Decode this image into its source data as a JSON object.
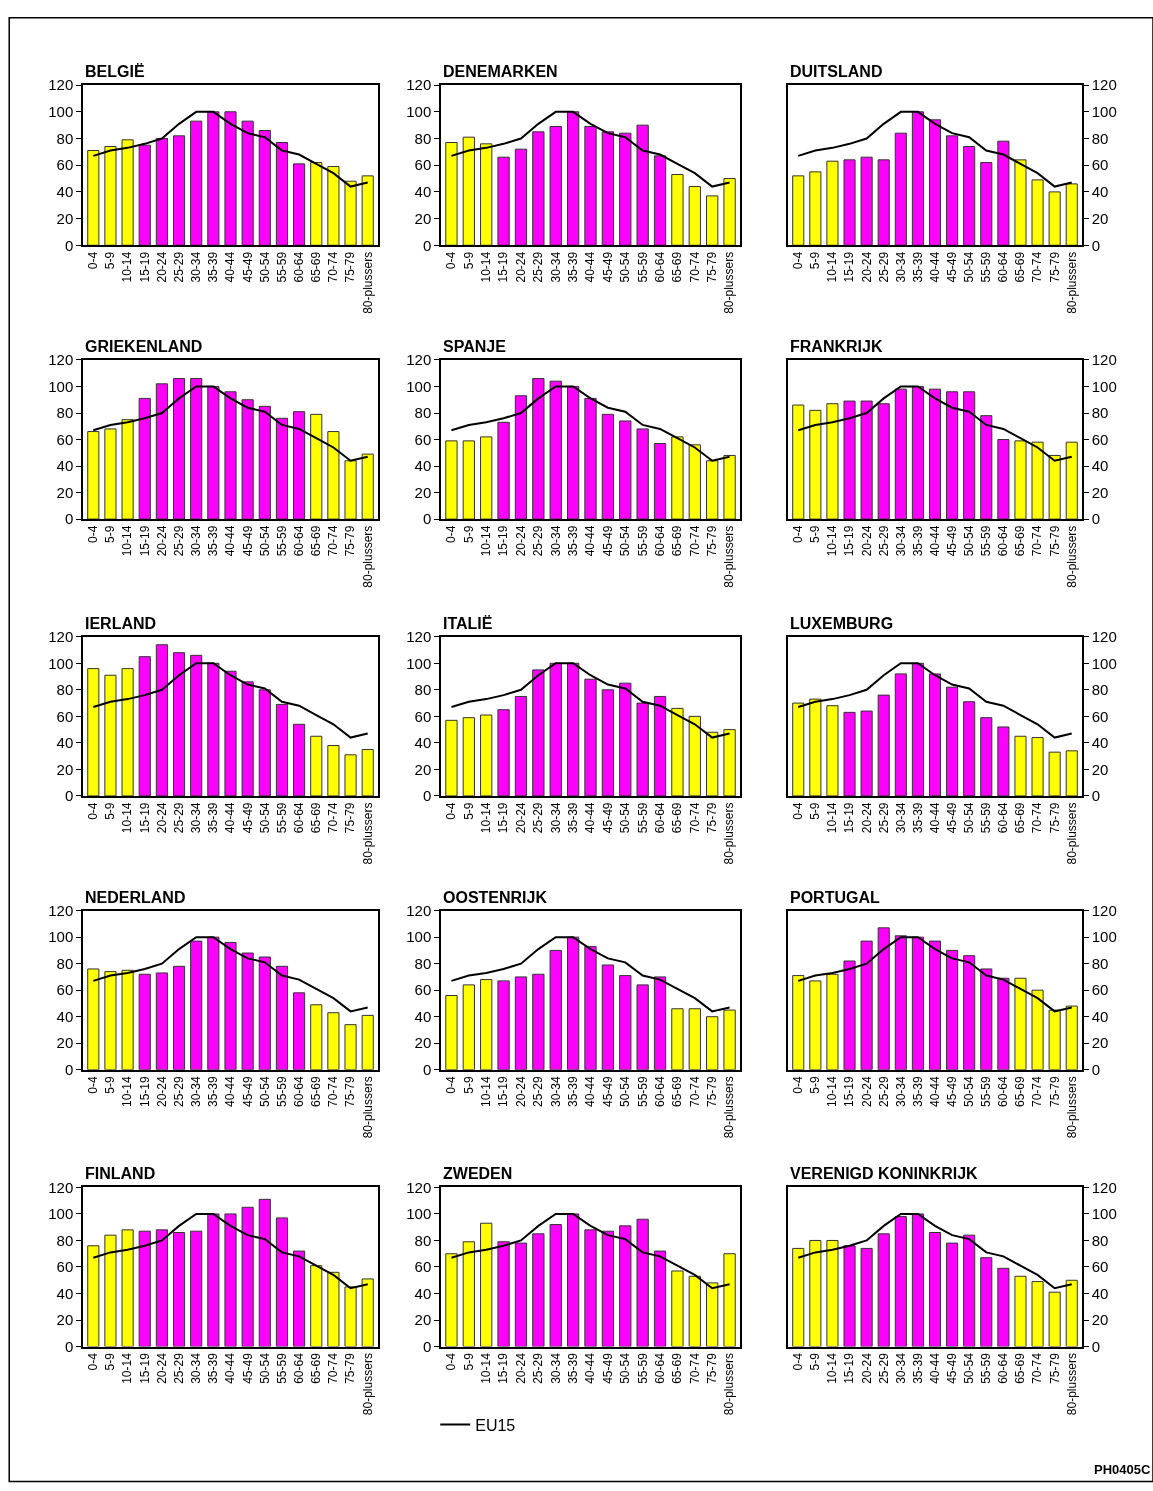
{
  "chart_data": [
    {
      "type": "bar",
      "title": "BELGIË",
      "categories": [
        "0-4",
        "5-9",
        "10-14",
        "15-19",
        "20-24",
        "25-29",
        "30-34",
        "35-39",
        "40-44",
        "45-49",
        "50-54",
        "55-59",
        "60-64",
        "65-69",
        "70-74",
        "75-79",
        "80-plussers"
      ],
      "ylim": [
        0,
        120
      ],
      "yticks": [
        0,
        20,
        40,
        60,
        80,
        100,
        120
      ],
      "series": [
        {
          "colors": [
            "#ffff00",
            "#ffff00",
            "#ffff00",
            "#ff00ff",
            "#ff00ff",
            "#ff00ff",
            "#ff00ff",
            "#ff00ff",
            "#ff00ff",
            "#ff00ff",
            "#ff00ff",
            "#ff00ff",
            "#ff00ff",
            "#ffff00",
            "#ffff00",
            "#ffff00",
            "#ffff00"
          ],
          "values": [
            71,
            74,
            79,
            75,
            80,
            82,
            93,
            100,
            100,
            93,
            86,
            77,
            61,
            62,
            59,
            48,
            52
          ]
        },
        {
          "type": "line",
          "color": "#000000",
          "values": [
            67,
            71,
            73,
            76,
            80,
            91,
            100,
            100,
            91,
            84,
            81,
            71,
            68,
            61,
            54,
            44,
            47
          ]
        }
      ]
    },
    {
      "type": "bar",
      "title": "DENEMARKEN",
      "categories": [
        "0-4",
        "5-9",
        "10-14",
        "15-19",
        "20-24",
        "25-29",
        "30-34",
        "35-39",
        "40-44",
        "45-49",
        "50-54",
        "55-59",
        "60-64",
        "65-69",
        "70-74",
        "75-79",
        "80-plussers"
      ],
      "ylim": [
        0,
        120
      ],
      "yticks": [
        0,
        20,
        40,
        60,
        80,
        100,
        120
      ],
      "series": [
        {
          "colors": [
            "#ffff00",
            "#ffff00",
            "#ffff00",
            "#ff00ff",
            "#ff00ff",
            "#ff00ff",
            "#ff00ff",
            "#ff00ff",
            "#ff00ff",
            "#ff00ff",
            "#ff00ff",
            "#ff00ff",
            "#ff00ff",
            "#ffff00",
            "#ffff00",
            "#ffff00",
            "#ffff00"
          ],
          "values": [
            77,
            81,
            76,
            66,
            72,
            85,
            89,
            100,
            89,
            85,
            84,
            90,
            67,
            53,
            44,
            37,
            50
          ]
        },
        {
          "type": "line",
          "color": "#000000",
          "values": [
            67,
            71,
            73,
            76,
            80,
            91,
            100,
            100,
            91,
            84,
            81,
            71,
            68,
            61,
            54,
            44,
            47
          ]
        }
      ]
    },
    {
      "type": "bar",
      "title": "DUITSLAND",
      "categories": [
        "0-4",
        "5-9",
        "10-14",
        "15-19",
        "20-24",
        "25-29",
        "30-34",
        "35-39",
        "40-44",
        "45-49",
        "50-54",
        "55-59",
        "60-64",
        "65-69",
        "70-74",
        "75-79",
        "80-plussers"
      ],
      "ylim": [
        0,
        120
      ],
      "yticks": [
        0,
        20,
        40,
        60,
        80,
        100,
        120
      ],
      "series": [
        {
          "colors": [
            "#ffff00",
            "#ffff00",
            "#ffff00",
            "#ff00ff",
            "#ff00ff",
            "#ff00ff",
            "#ff00ff",
            "#ff00ff",
            "#ff00ff",
            "#ff00ff",
            "#ff00ff",
            "#ff00ff",
            "#ff00ff",
            "#ffff00",
            "#ffff00",
            "#ffff00",
            "#ffff00"
          ],
          "values": [
            52,
            55,
            63,
            64,
            66,
            64,
            84,
            100,
            94,
            82,
            74,
            62,
            78,
            64,
            49,
            40,
            46
          ]
        },
        {
          "type": "line",
          "color": "#000000",
          "values": [
            67,
            71,
            73,
            76,
            80,
            91,
            100,
            100,
            91,
            84,
            81,
            71,
            68,
            61,
            54,
            44,
            47
          ]
        }
      ]
    },
    {
      "type": "bar",
      "title": "GRIEKENLAND",
      "categories": [
        "0-4",
        "5-9",
        "10-14",
        "15-19",
        "20-24",
        "25-29",
        "30-34",
        "35-39",
        "40-44",
        "45-49",
        "50-54",
        "55-59",
        "60-64",
        "65-69",
        "70-74",
        "75-79",
        "80-plussers"
      ],
      "ylim": [
        0,
        120
      ],
      "yticks": [
        0,
        20,
        40,
        60,
        80,
        100,
        120
      ],
      "series": [
        {
          "colors": [
            "#ffff00",
            "#ffff00",
            "#ffff00",
            "#ff00ff",
            "#ff00ff",
            "#ff00ff",
            "#ff00ff",
            "#ff00ff",
            "#ff00ff",
            "#ff00ff",
            "#ff00ff",
            "#ff00ff",
            "#ff00ff",
            "#ffff00",
            "#ffff00",
            "#ffff00",
            "#ffff00"
          ],
          "values": [
            66,
            68,
            75,
            91,
            102,
            106,
            106,
            100,
            96,
            90,
            85,
            76,
            81,
            79,
            66,
            44,
            49
          ]
        },
        {
          "type": "line",
          "color": "#000000",
          "values": [
            67,
            71,
            73,
            76,
            80,
            91,
            100,
            100,
            91,
            84,
            81,
            71,
            68,
            61,
            54,
            44,
            47
          ]
        }
      ]
    },
    {
      "type": "bar",
      "title": "SPANJE",
      "categories": [
        "0-4",
        "5-9",
        "10-14",
        "15-19",
        "20-24",
        "25-29",
        "30-34",
        "35-39",
        "40-44",
        "45-49",
        "50-54",
        "55-59",
        "60-64",
        "65-69",
        "70-74",
        "75-79",
        "80-plussers"
      ],
      "ylim": [
        0,
        120
      ],
      "yticks": [
        0,
        20,
        40,
        60,
        80,
        100,
        120
      ],
      "series": [
        {
          "colors": [
            "#ffff00",
            "#ffff00",
            "#ffff00",
            "#ff00ff",
            "#ff00ff",
            "#ff00ff",
            "#ff00ff",
            "#ff00ff",
            "#ff00ff",
            "#ff00ff",
            "#ff00ff",
            "#ff00ff",
            "#ff00ff",
            "#ffff00",
            "#ffff00",
            "#ffff00",
            "#ffff00"
          ],
          "values": [
            59,
            59,
            62,
            73,
            93,
            106,
            104,
            100,
            91,
            79,
            74,
            68,
            57,
            62,
            56,
            44,
            48
          ]
        },
        {
          "type": "line",
          "color": "#000000",
          "values": [
            67,
            71,
            73,
            76,
            80,
            91,
            100,
            100,
            91,
            84,
            81,
            71,
            68,
            61,
            54,
            44,
            47
          ]
        }
      ]
    },
    {
      "type": "bar",
      "title": "FRANKRIJK",
      "categories": [
        "0-4",
        "5-9",
        "10-14",
        "15-19",
        "20-24",
        "25-29",
        "30-34",
        "35-39",
        "40-44",
        "45-49",
        "50-54",
        "55-59",
        "60-64",
        "65-69",
        "70-74",
        "75-79",
        "80-plussers"
      ],
      "ylim": [
        0,
        120
      ],
      "yticks": [
        0,
        20,
        40,
        60,
        80,
        100,
        120
      ],
      "series": [
        {
          "colors": [
            "#ffff00",
            "#ffff00",
            "#ffff00",
            "#ff00ff",
            "#ff00ff",
            "#ff00ff",
            "#ff00ff",
            "#ff00ff",
            "#ff00ff",
            "#ff00ff",
            "#ff00ff",
            "#ff00ff",
            "#ff00ff",
            "#ffff00",
            "#ffff00",
            "#ffff00",
            "#ffff00"
          ],
          "values": [
            86,
            82,
            87,
            89,
            89,
            87,
            98,
            100,
            98,
            96,
            96,
            78,
            60,
            59,
            58,
            48,
            58
          ]
        },
        {
          "type": "line",
          "color": "#000000",
          "values": [
            67,
            71,
            73,
            76,
            80,
            91,
            100,
            100,
            91,
            84,
            81,
            71,
            68,
            61,
            54,
            44,
            47
          ]
        }
      ]
    },
    {
      "type": "bar",
      "title": "IERLAND",
      "categories": [
        "0-4",
        "5-9",
        "10-14",
        "15-19",
        "20-24",
        "25-29",
        "30-34",
        "35-39",
        "40-44",
        "45-49",
        "50-54",
        "55-59",
        "60-64",
        "65-69",
        "70-74",
        "75-79",
        "80-plussers"
      ],
      "ylim": [
        0,
        120
      ],
      "yticks": [
        0,
        20,
        40,
        60,
        80,
        100,
        120
      ],
      "series": [
        {
          "colors": [
            "#ffff00",
            "#ffff00",
            "#ffff00",
            "#ff00ff",
            "#ff00ff",
            "#ff00ff",
            "#ff00ff",
            "#ff00ff",
            "#ff00ff",
            "#ff00ff",
            "#ff00ff",
            "#ff00ff",
            "#ff00ff",
            "#ffff00",
            "#ffff00",
            "#ffff00",
            "#ffff00"
          ],
          "values": [
            96,
            91,
            96,
            105,
            114,
            108,
            106,
            100,
            94,
            86,
            80,
            69,
            54,
            45,
            38,
            31,
            35
          ]
        },
        {
          "type": "line",
          "color": "#000000",
          "values": [
            67,
            71,
            73,
            76,
            80,
            91,
            100,
            100,
            91,
            84,
            81,
            71,
            68,
            61,
            54,
            44,
            47
          ]
        }
      ]
    },
    {
      "type": "bar",
      "title": "ITALIË",
      "categories": [
        "0-4",
        "5-9",
        "10-14",
        "15-19",
        "20-24",
        "25-29",
        "30-34",
        "35-39",
        "40-44",
        "45-49",
        "50-54",
        "55-59",
        "60-64",
        "65-69",
        "70-74",
        "75-79",
        "80-plussers"
      ],
      "ylim": [
        0,
        120
      ],
      "yticks": [
        0,
        20,
        40,
        60,
        80,
        100,
        120
      ],
      "series": [
        {
          "colors": [
            "#ffff00",
            "#ffff00",
            "#ffff00",
            "#ff00ff",
            "#ff00ff",
            "#ff00ff",
            "#ff00ff",
            "#ff00ff",
            "#ff00ff",
            "#ff00ff",
            "#ff00ff",
            "#ff00ff",
            "#ff00ff",
            "#ffff00",
            "#ffff00",
            "#ffff00",
            "#ffff00"
          ],
          "values": [
            57,
            59,
            61,
            65,
            75,
            95,
            100,
            100,
            88,
            80,
            85,
            70,
            75,
            66,
            60,
            48,
            50
          ]
        },
        {
          "type": "line",
          "color": "#000000",
          "values": [
            67,
            71,
            73,
            76,
            80,
            91,
            100,
            100,
            91,
            84,
            81,
            71,
            68,
            61,
            54,
            44,
            47
          ]
        }
      ]
    },
    {
      "type": "bar",
      "title": "LUXEMBURG",
      "categories": [
        "0-4",
        "5-9",
        "10-14",
        "15-19",
        "20-24",
        "25-29",
        "30-34",
        "35-39",
        "40-44",
        "45-49",
        "50-54",
        "55-59",
        "60-64",
        "65-69",
        "70-74",
        "75-79",
        "80-plussers"
      ],
      "ylim": [
        0,
        120
      ],
      "yticks": [
        0,
        20,
        40,
        60,
        80,
        100,
        120
      ],
      "series": [
        {
          "colors": [
            "#ffff00",
            "#ffff00",
            "#ffff00",
            "#ff00ff",
            "#ff00ff",
            "#ff00ff",
            "#ff00ff",
            "#ff00ff",
            "#ff00ff",
            "#ff00ff",
            "#ff00ff",
            "#ff00ff",
            "#ff00ff",
            "#ffff00",
            "#ffff00",
            "#ffff00",
            "#ffff00"
          ],
          "values": [
            70,
            73,
            68,
            63,
            64,
            76,
            92,
            100,
            92,
            82,
            71,
            59,
            52,
            45,
            44,
            33,
            34
          ]
        },
        {
          "type": "line",
          "color": "#000000",
          "values": [
            67,
            71,
            73,
            76,
            80,
            91,
            100,
            100,
            91,
            84,
            81,
            71,
            68,
            61,
            54,
            44,
            47
          ]
        }
      ]
    },
    {
      "type": "bar",
      "title": "NEDERLAND",
      "categories": [
        "0-4",
        "5-9",
        "10-14",
        "15-19",
        "20-24",
        "25-29",
        "30-34",
        "35-39",
        "40-44",
        "45-49",
        "50-54",
        "55-59",
        "60-64",
        "65-69",
        "70-74",
        "75-79",
        "80-plussers"
      ],
      "ylim": [
        0,
        120
      ],
      "yticks": [
        0,
        20,
        40,
        60,
        80,
        100,
        120
      ],
      "series": [
        {
          "colors": [
            "#ffff00",
            "#ffff00",
            "#ffff00",
            "#ff00ff",
            "#ff00ff",
            "#ff00ff",
            "#ff00ff",
            "#ff00ff",
            "#ff00ff",
            "#ff00ff",
            "#ff00ff",
            "#ff00ff",
            "#ff00ff",
            "#ffff00",
            "#ffff00",
            "#ffff00",
            "#ffff00"
          ],
          "values": [
            76,
            74,
            75,
            72,
            73,
            78,
            97,
            100,
            96,
            88,
            85,
            78,
            58,
            49,
            43,
            34,
            41
          ]
        },
        {
          "type": "line",
          "color": "#000000",
          "values": [
            67,
            71,
            73,
            76,
            80,
            91,
            100,
            100,
            91,
            84,
            81,
            71,
            68,
            61,
            54,
            44,
            47
          ]
        }
      ]
    },
    {
      "type": "bar",
      "title": "OOSTENRIJK",
      "categories": [
        "0-4",
        "5-9",
        "10-14",
        "15-19",
        "20-24",
        "25-29",
        "30-34",
        "35-39",
        "40-44",
        "45-49",
        "50-54",
        "55-59",
        "60-64",
        "65-69",
        "70-74",
        "75-79",
        "80-plussers"
      ],
      "ylim": [
        0,
        120
      ],
      "yticks": [
        0,
        20,
        40,
        60,
        80,
        100,
        120
      ],
      "series": [
        {
          "colors": [
            "#ffff00",
            "#ffff00",
            "#ffff00",
            "#ff00ff",
            "#ff00ff",
            "#ff00ff",
            "#ff00ff",
            "#ff00ff",
            "#ff00ff",
            "#ff00ff",
            "#ff00ff",
            "#ff00ff",
            "#ff00ff",
            "#ffff00",
            "#ffff00",
            "#ffff00",
            "#ffff00"
          ],
          "values": [
            56,
            64,
            68,
            67,
            70,
            72,
            90,
            100,
            93,
            79,
            71,
            64,
            70,
            46,
            46,
            40,
            45
          ]
        },
        {
          "type": "line",
          "color": "#000000",
          "values": [
            67,
            71,
            73,
            76,
            80,
            91,
            100,
            100,
            91,
            84,
            81,
            71,
            68,
            61,
            54,
            44,
            47
          ]
        }
      ]
    },
    {
      "type": "bar",
      "title": "PORTUGAL",
      "categories": [
        "0-4",
        "5-9",
        "10-14",
        "15-19",
        "20-24",
        "25-29",
        "30-34",
        "35-39",
        "40-44",
        "45-49",
        "50-54",
        "55-59",
        "60-64",
        "65-69",
        "70-74",
        "75-79",
        "80-plussers"
      ],
      "ylim": [
        0,
        120
      ],
      "yticks": [
        0,
        20,
        40,
        60,
        80,
        100,
        120
      ],
      "series": [
        {
          "colors": [
            "#ffff00",
            "#ffff00",
            "#ffff00",
            "#ff00ff",
            "#ff00ff",
            "#ff00ff",
            "#ff00ff",
            "#ff00ff",
            "#ff00ff",
            "#ff00ff",
            "#ff00ff",
            "#ff00ff",
            "#ff00ff",
            "#ffff00",
            "#ffff00",
            "#ffff00",
            "#ffff00"
          ],
          "values": [
            71,
            67,
            72,
            82,
            97,
            107,
            101,
            100,
            97,
            90,
            86,
            76,
            69,
            69,
            60,
            45,
            48
          ]
        },
        {
          "type": "line",
          "color": "#000000",
          "values": [
            67,
            71,
            73,
            76,
            80,
            91,
            100,
            100,
            91,
            84,
            81,
            71,
            68,
            61,
            54,
            44,
            47
          ]
        }
      ]
    },
    {
      "type": "bar",
      "title": "FINLAND",
      "categories": [
        "0-4",
        "5-9",
        "10-14",
        "15-19",
        "20-24",
        "25-29",
        "30-34",
        "35-39",
        "40-44",
        "45-49",
        "50-54",
        "55-59",
        "60-64",
        "65-69",
        "70-74",
        "75-79",
        "80-plussers"
      ],
      "ylim": [
        0,
        120
      ],
      "yticks": [
        0,
        20,
        40,
        60,
        80,
        100,
        120
      ],
      "series": [
        {
          "colors": [
            "#ffff00",
            "#ffff00",
            "#ffff00",
            "#ff00ff",
            "#ff00ff",
            "#ff00ff",
            "#ff00ff",
            "#ff00ff",
            "#ff00ff",
            "#ff00ff",
            "#ff00ff",
            "#ff00ff",
            "#ff00ff",
            "#ffff00",
            "#ffff00",
            "#ffff00",
            "#ffff00"
          ],
          "values": [
            76,
            84,
            88,
            87,
            88,
            86,
            87,
            100,
            100,
            105,
            111,
            97,
            72,
            61,
            56,
            45,
            51
          ]
        },
        {
          "type": "line",
          "color": "#000000",
          "values": [
            67,
            71,
            73,
            76,
            80,
            91,
            100,
            100,
            91,
            84,
            81,
            71,
            68,
            61,
            54,
            44,
            47
          ]
        }
      ]
    },
    {
      "type": "bar",
      "title": "ZWEDEN",
      "categories": [
        "0-4",
        "5-9",
        "10-14",
        "15-19",
        "20-24",
        "25-29",
        "30-34",
        "35-39",
        "40-44",
        "45-49",
        "50-54",
        "55-59",
        "60-64",
        "65-69",
        "70-74",
        "75-79",
        "80-plussers"
      ],
      "ylim": [
        0,
        120
      ],
      "yticks": [
        0,
        20,
        40,
        60,
        80,
        100,
        120
      ],
      "legend": "bottom",
      "series": [
        {
          "colors": [
            "#ffff00",
            "#ffff00",
            "#ffff00",
            "#ff00ff",
            "#ff00ff",
            "#ff00ff",
            "#ff00ff",
            "#ff00ff",
            "#ff00ff",
            "#ff00ff",
            "#ff00ff",
            "#ff00ff",
            "#ff00ff",
            "#ffff00",
            "#ffff00",
            "#ffff00",
            "#ffff00"
          ],
          "values": [
            70,
            79,
            93,
            79,
            78,
            85,
            92,
            100,
            88,
            87,
            91,
            96,
            72,
            57,
            53,
            48,
            70
          ]
        },
        {
          "type": "line",
          "name": "EU15",
          "color": "#000000",
          "values": [
            67,
            71,
            73,
            76,
            80,
            91,
            100,
            100,
            91,
            84,
            81,
            71,
            68,
            61,
            54,
            44,
            47
          ]
        }
      ]
    },
    {
      "type": "bar",
      "title": "VERENIGD KONINKRIJK",
      "categories": [
        "0-4",
        "5-9",
        "10-14",
        "15-19",
        "20-24",
        "25-29",
        "30-34",
        "35-39",
        "40-44",
        "45-49",
        "50-54",
        "55-59",
        "60-64",
        "65-69",
        "70-74",
        "75-79",
        "80-plussers"
      ],
      "ylim": [
        0,
        120
      ],
      "yticks": [
        0,
        20,
        40,
        60,
        80,
        100,
        120
      ],
      "annotations": [
        "PH0405C"
      ],
      "series": [
        {
          "colors": [
            "#ffff00",
            "#ffff00",
            "#ffff00",
            "#ff00ff",
            "#ff00ff",
            "#ff00ff",
            "#ff00ff",
            "#ff00ff",
            "#ff00ff",
            "#ff00ff",
            "#ff00ff",
            "#ff00ff",
            "#ff00ff",
            "#ffff00",
            "#ffff00",
            "#ffff00",
            "#ffff00"
          ],
          "values": [
            74,
            80,
            80,
            76,
            74,
            85,
            98,
            100,
            86,
            78,
            84,
            67,
            59,
            53,
            49,
            41,
            50
          ]
        },
        {
          "type": "line",
          "color": "#000000",
          "values": [
            67,
            71,
            73,
            76,
            80,
            91,
            100,
            100,
            91,
            84,
            81,
            71,
            68,
            61,
            54,
            44,
            47
          ]
        }
      ]
    }
  ]
}
